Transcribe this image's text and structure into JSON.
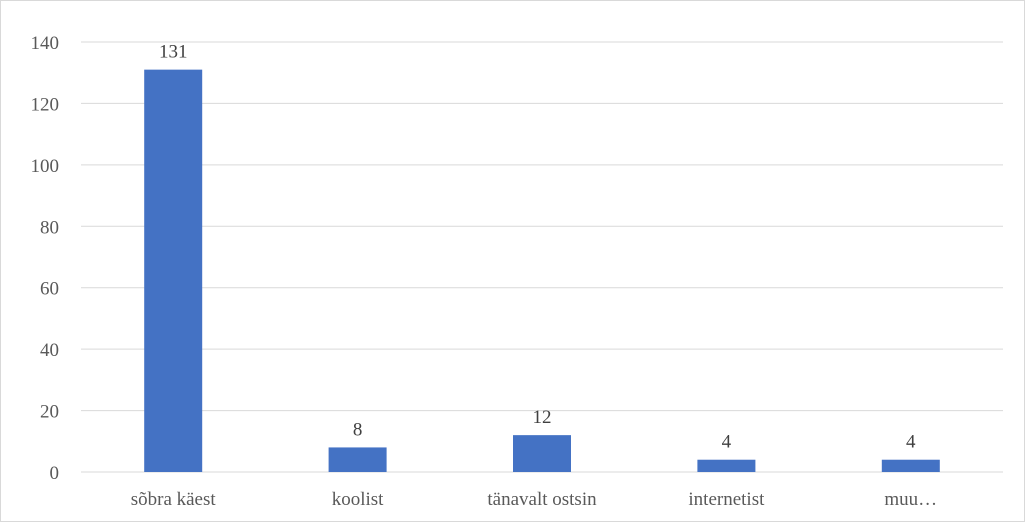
{
  "chart_data": {
    "type": "bar",
    "title": "",
    "xlabel": "",
    "ylabel": "",
    "categories": [
      "sõbra käest",
      "koolist",
      "tänavalt ostsin",
      "internetist",
      "muu…"
    ],
    "values": [
      131,
      8,
      12,
      4,
      4
    ],
    "data_labels": [
      "131",
      "8",
      "12",
      "4",
      "4"
    ],
    "ylim": [
      0,
      140
    ],
    "yticks": [
      0,
      20,
      40,
      60,
      80,
      100,
      120,
      140
    ],
    "grid": true,
    "legend": "none",
    "bar_color": "#4472c4",
    "grid_color": "#d9d9d9"
  }
}
